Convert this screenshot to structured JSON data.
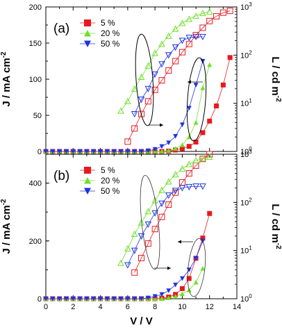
{
  "chart_data": [
    {
      "id": "a",
      "panel_label": "(a)",
      "type": "line",
      "left_axis": {
        "label": "J / mA cm",
        "label_sup": "-2",
        "range": [
          0,
          200
        ],
        "ticks": [
          "0",
          "50",
          "100",
          "150",
          "200"
        ]
      },
      "right_axis": {
        "label": "L / cd m",
        "label_sup": "-2",
        "scale": "log",
        "range": [
          1,
          1000
        ],
        "ticks": [
          {
            "base": "10",
            "exp": "0",
            "value": 1
          },
          {
            "base": "10",
            "exp": "1",
            "value": 10
          },
          {
            "base": "10",
            "exp": "2",
            "value": 100
          },
          {
            "base": "10",
            "exp": "3",
            "value": 1000
          }
        ]
      },
      "x_range": [
        0,
        14
      ],
      "legend": [
        {
          "label": "5 %",
          "color": "#e8191f",
          "marker": "square"
        },
        {
          "label": "20 %",
          "color": "#6ee02a",
          "marker": "triangle-up"
        },
        {
          "label": "50 %",
          "color": "#1c34e0",
          "marker": "triangle-down"
        }
      ],
      "series": [
        {
          "name": "5 %",
          "axis": "left",
          "filled": true,
          "color": "#e8191f",
          "marker": "square",
          "x": [
            0,
            0.5,
            1,
            1.5,
            2,
            2.5,
            3,
            3.5,
            4,
            4.5,
            5,
            5.5,
            6,
            6.5,
            7,
            7.5,
            8,
            8.5,
            9,
            9.5,
            10,
            10.5,
            11,
            11.5,
            12,
            12.5,
            13,
            13.5
          ],
          "y": [
            0,
            0,
            0,
            0,
            0,
            0,
            0,
            0,
            0,
            0,
            0,
            0,
            0,
            0,
            0,
            0,
            0,
            0,
            0.5,
            2,
            4,
            7,
            13,
            26,
            42,
            63,
            92,
            130
          ]
        },
        {
          "name": "20 %",
          "axis": "left",
          "filled": true,
          "color": "#6ee02a",
          "marker": "triangle-up",
          "x": [
            0,
            0.5,
            1,
            1.5,
            2,
            2.5,
            3,
            3.5,
            4,
            4.5,
            5,
            5.5,
            6,
            6.5,
            7,
            7.5,
            8,
            8.5,
            9,
            9.5,
            10,
            10.5,
            11,
            11.5,
            12
          ],
          "y": [
            0,
            0,
            0,
            0,
            0,
            0,
            0,
            0,
            0,
            0,
            0,
            0,
            0,
            0,
            0,
            0,
            0,
            0,
            1,
            4,
            9,
            20,
            40,
            88,
            120
          ]
        },
        {
          "name": "50 %",
          "axis": "left",
          "filled": true,
          "color": "#1c34e0",
          "marker": "triangle-down",
          "x": [
            0,
            0.5,
            1,
            1.5,
            2,
            2.5,
            3,
            3.5,
            4,
            4.5,
            5,
            5.5,
            6,
            6.5,
            7,
            7.5,
            8,
            8.5,
            9,
            9.5,
            10,
            10.5,
            11,
            11.5
          ],
          "y": [
            0,
            0,
            0,
            0,
            0,
            0,
            0,
            0,
            0,
            0,
            0,
            0,
            0,
            0,
            0,
            1,
            3,
            7,
            12,
            21,
            37,
            60,
            92,
            125
          ]
        },
        {
          "name": "5 %",
          "axis": "right",
          "filled": false,
          "color": "#e8191f",
          "marker": "square",
          "x": [
            6,
            6.5,
            7,
            7.5,
            8,
            8.5,
            9,
            9.5,
            10,
            10.5,
            11,
            11.5,
            12,
            12.5,
            13,
            13.5
          ],
          "y": [
            1.6,
            3,
            6,
            11,
            19,
            30,
            48,
            75,
            115,
            170,
            260,
            370,
            510,
            640,
            760,
            830
          ]
        },
        {
          "name": "20 %",
          "axis": "right",
          "filled": false,
          "color": "#6ee02a",
          "marker": "triangle-up",
          "x": [
            5.5,
            6,
            6.5,
            7,
            7.5,
            8,
            8.5,
            9,
            9.5,
            10,
            10.5,
            11,
            11.5,
            12
          ],
          "y": [
            7,
            11,
            20,
            35,
            60,
            110,
            170,
            250,
            350,
            460,
            560,
            650,
            740,
            800
          ]
        },
        {
          "name": "50 %",
          "axis": "right",
          "filled": false,
          "color": "#1c34e0",
          "marker": "triangle-down",
          "x": [
            6.5,
            7,
            7.5,
            8,
            8.5,
            9,
            9.5,
            10,
            10.5,
            11,
            11.5
          ],
          "y": [
            6,
            12,
            20,
            40,
            65,
            100,
            145,
            200,
            230,
            240,
            240
          ]
        }
      ]
    },
    {
      "id": "b",
      "panel_label": "(b)",
      "type": "line",
      "left_axis": {
        "label": "J / mA cm",
        "label_sup": "-2",
        "range": [
          0,
          500
        ],
        "ticks": [
          "0",
          "200",
          "400"
        ]
      },
      "right_axis": {
        "label": "L / cd m",
        "label_sup": "-2",
        "scale": "log",
        "range": [
          1,
          1000
        ],
        "ticks": [
          {
            "base": "10",
            "exp": "0",
            "value": 1
          },
          {
            "base": "10",
            "exp": "1",
            "value": 10
          },
          {
            "base": "10",
            "exp": "2",
            "value": 100
          },
          {
            "base": "10",
            "exp": "3",
            "value": 1000
          }
        ]
      },
      "x_axis": {
        "label": "V / V",
        "range": [
          0,
          14
        ],
        "ticks": [
          "0",
          "2",
          "4",
          "6",
          "8",
          "10",
          "12",
          "14"
        ]
      },
      "legend": [
        {
          "label": "5 %",
          "color": "#e8191f",
          "marker": "square"
        },
        {
          "label": "20 %",
          "color": "#6ee02a",
          "marker": "triangle-up"
        },
        {
          "label": "50 %",
          "color": "#1c34e0",
          "marker": "triangle-down"
        }
      ],
      "series": [
        {
          "name": "5 %",
          "axis": "left",
          "filled": true,
          "color": "#e8191f",
          "marker": "square",
          "x": [
            0,
            0.5,
            1,
            1.5,
            2,
            2.5,
            3,
            3.5,
            4,
            4.5,
            5,
            5.5,
            6,
            6.5,
            7,
            7.5,
            8,
            8.5,
            9,
            9.5,
            10,
            10.5,
            11,
            11.5,
            12
          ],
          "y": [
            0,
            0,
            0,
            0,
            0,
            0,
            0,
            0,
            0,
            0,
            0,
            0,
            0,
            0,
            0,
            0,
            0,
            2,
            6,
            15,
            35,
            70,
            140,
            210,
            295
          ]
        },
        {
          "name": "20 %",
          "axis": "left",
          "filled": true,
          "color": "#6ee02a",
          "marker": "triangle-up",
          "x": [
            0,
            0.5,
            1,
            1.5,
            2,
            2.5,
            3,
            3.5,
            4,
            4.5,
            5,
            5.5,
            6,
            6.5,
            7,
            7.5,
            8,
            8.5,
            9,
            9.5,
            10,
            10.5,
            11,
            11.5
          ],
          "y": [
            0,
            0,
            0,
            0,
            0,
            0,
            0,
            0,
            0,
            0,
            0,
            0,
            0,
            0,
            0,
            0,
            0,
            0,
            3,
            8,
            17,
            30,
            57,
            105
          ]
        },
        {
          "name": "50 %",
          "axis": "left",
          "filled": true,
          "color": "#1c34e0",
          "marker": "triangle-down",
          "x": [
            0,
            0.5,
            1,
            1.5,
            2,
            2.5,
            3,
            3.5,
            4,
            4.5,
            5,
            5.5,
            6,
            6.5,
            7,
            7.5,
            8,
            8.5,
            9,
            9.5,
            10,
            10.5,
            11,
            11.5
          ],
          "y": [
            0,
            0,
            0,
            0,
            0,
            0,
            0,
            0,
            0,
            0,
            0,
            0,
            0,
            0,
            0,
            3,
            8,
            15,
            28,
            48,
            70,
            100,
            140,
            200
          ]
        },
        {
          "name": "5 %",
          "axis": "right",
          "filled": false,
          "color": "#e8191f",
          "marker": "square",
          "x": [
            6.5,
            7,
            7.5,
            8,
            8.5,
            9,
            9.5,
            10,
            10.5,
            11,
            11.5,
            12
          ],
          "y": [
            3.5,
            7,
            14,
            28,
            50,
            90,
            160,
            260,
            400,
            580,
            800,
            1000
          ]
        },
        {
          "name": "20 %",
          "axis": "right",
          "filled": false,
          "color": "#6ee02a",
          "marker": "triangle-up",
          "x": [
            5.5,
            6,
            6.5,
            7,
            7.5,
            8,
            8.5,
            9,
            9.5,
            10,
            10.5,
            11,
            11.5,
            12
          ],
          "y": [
            5.5,
            11,
            22,
            38,
            65,
            110,
            180,
            270,
            380,
            500,
            620,
            740,
            820,
            880
          ]
        },
        {
          "name": "50 %",
          "axis": "right",
          "filled": false,
          "color": "#1c34e0",
          "marker": "triangle-down",
          "x": [
            6,
            6.5,
            7,
            7.5,
            8,
            8.5,
            9,
            9.5,
            10,
            10.5,
            11,
            11.5
          ],
          "y": [
            5,
            10,
            20,
            35,
            60,
            95,
            140,
            175,
            200,
            210,
            215,
            215
          ]
        }
      ]
    }
  ]
}
